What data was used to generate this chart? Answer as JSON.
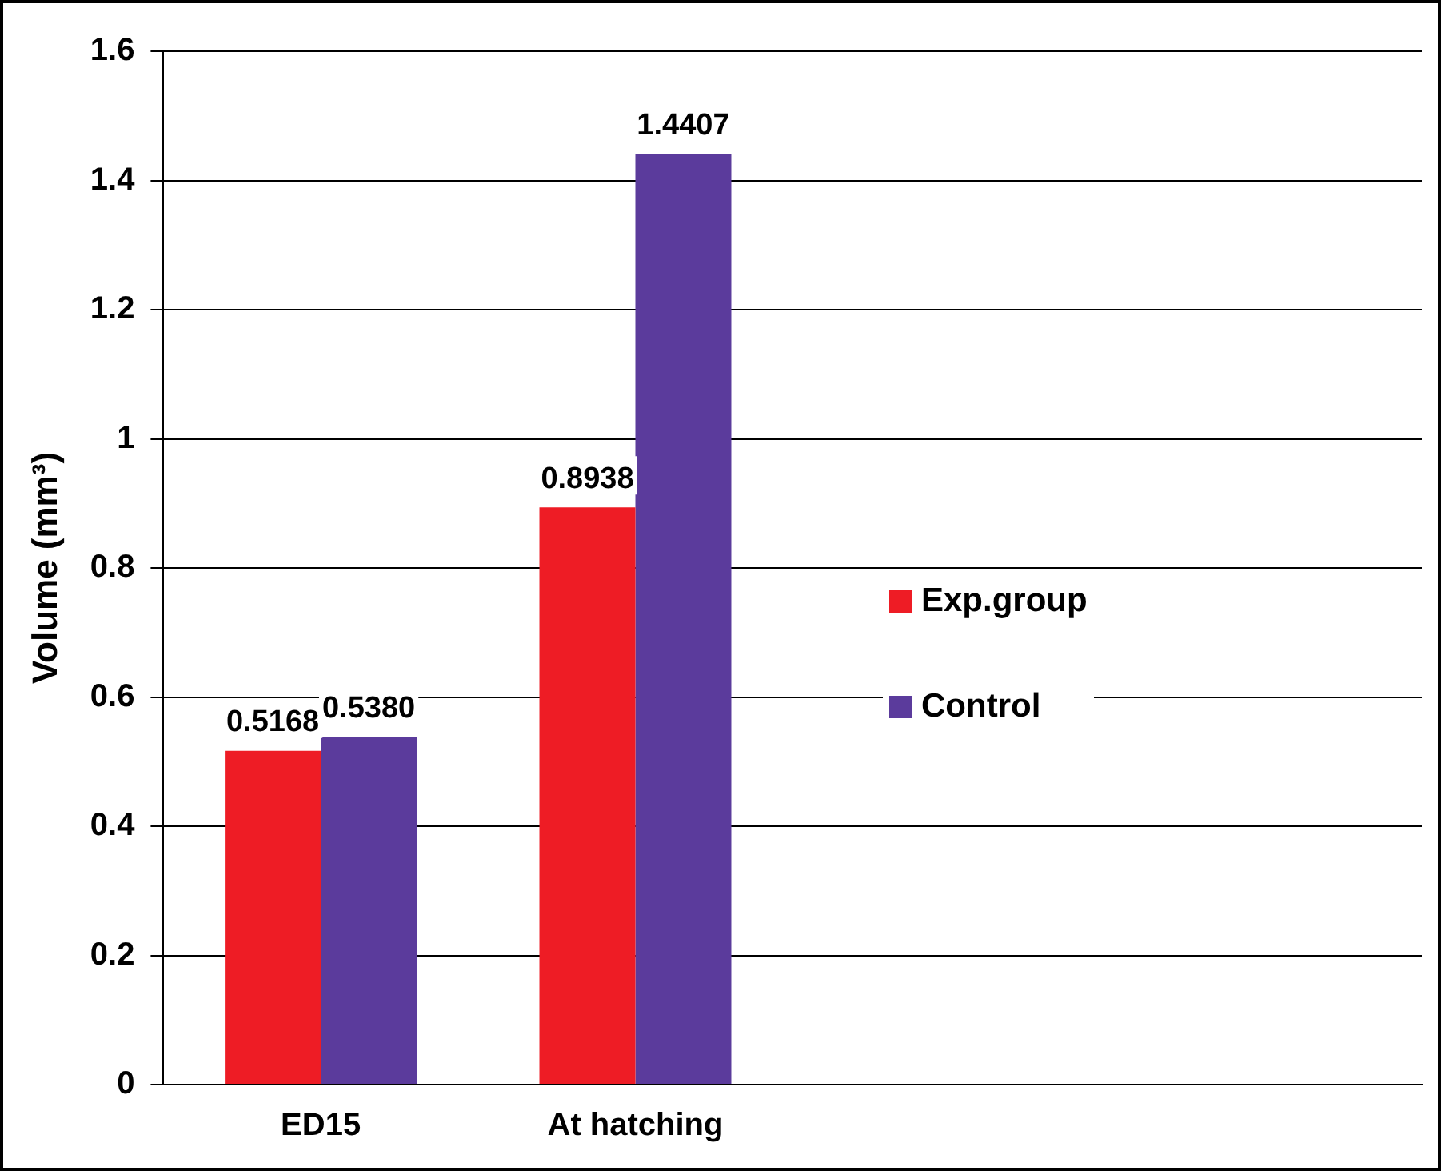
{
  "chart_data": {
    "type": "bar",
    "ylabel": "Volume (mm³)",
    "categories": [
      "ED15",
      "At hatching"
    ],
    "series": [
      {
        "name": "Exp.group",
        "color": "#ee1c25",
        "values": [
          0.5168,
          0.8938
        ],
        "value_labels": [
          "0.5168",
          "0.8938"
        ]
      },
      {
        "name": "Control",
        "color": "#5b3b9c",
        "values": [
          0.538,
          1.4407
        ],
        "value_labels": [
          "0.5380",
          "1.4407"
        ]
      }
    ],
    "ylim": [
      0,
      1.6
    ],
    "yticks": [
      0,
      0.2,
      0.4,
      0.6,
      0.8,
      1,
      1.2,
      1.4,
      1.6
    ],
    "grid": "y",
    "legend": "right"
  }
}
